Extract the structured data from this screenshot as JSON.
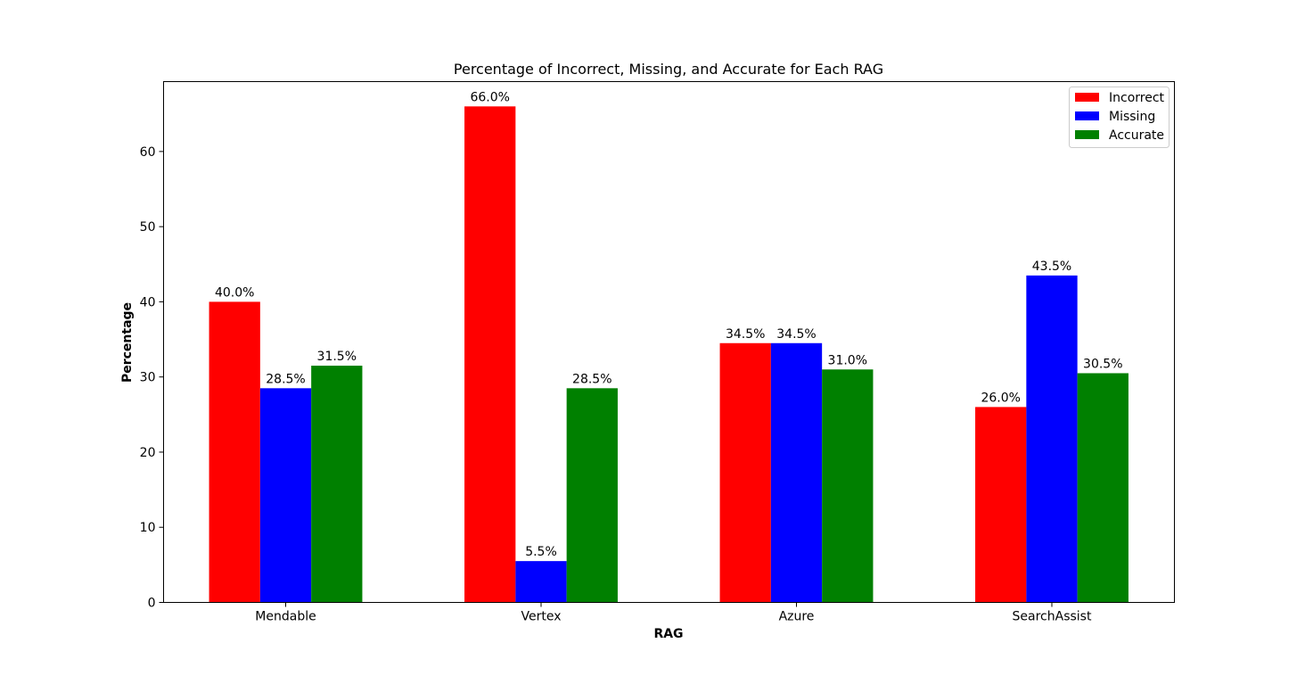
{
  "chart_data": {
    "type": "bar",
    "title": "Percentage of Incorrect, Missing, and Accurate for Each RAG",
    "xlabel": "RAG",
    "ylabel": "Percentage",
    "categories": [
      "Mendable",
      "Vertex",
      "Azure",
      "SearchAssist"
    ],
    "series": [
      {
        "name": "Incorrect",
        "color": "#ff0000",
        "values": [
          40.0,
          66.0,
          34.5,
          26.0
        ],
        "labels": [
          "40.0%",
          "66.0%",
          "34.5%",
          "26.0%"
        ]
      },
      {
        "name": "Missing",
        "color": "#0000ff",
        "values": [
          28.5,
          5.5,
          34.5,
          43.5
        ],
        "labels": [
          "28.5%",
          "5.5%",
          "34.5%",
          "43.5%"
        ]
      },
      {
        "name": "Accurate",
        "color": "#008000",
        "values": [
          31.5,
          28.5,
          31.0,
          30.5
        ],
        "labels": [
          "31.5%",
          "28.5%",
          "31.0%",
          "30.5%"
        ]
      }
    ],
    "ylim": [
      0,
      69.3
    ],
    "yticks": [
      0,
      10,
      20,
      30,
      40,
      50,
      60
    ],
    "grid": false,
    "legend_position": "top-right"
  }
}
